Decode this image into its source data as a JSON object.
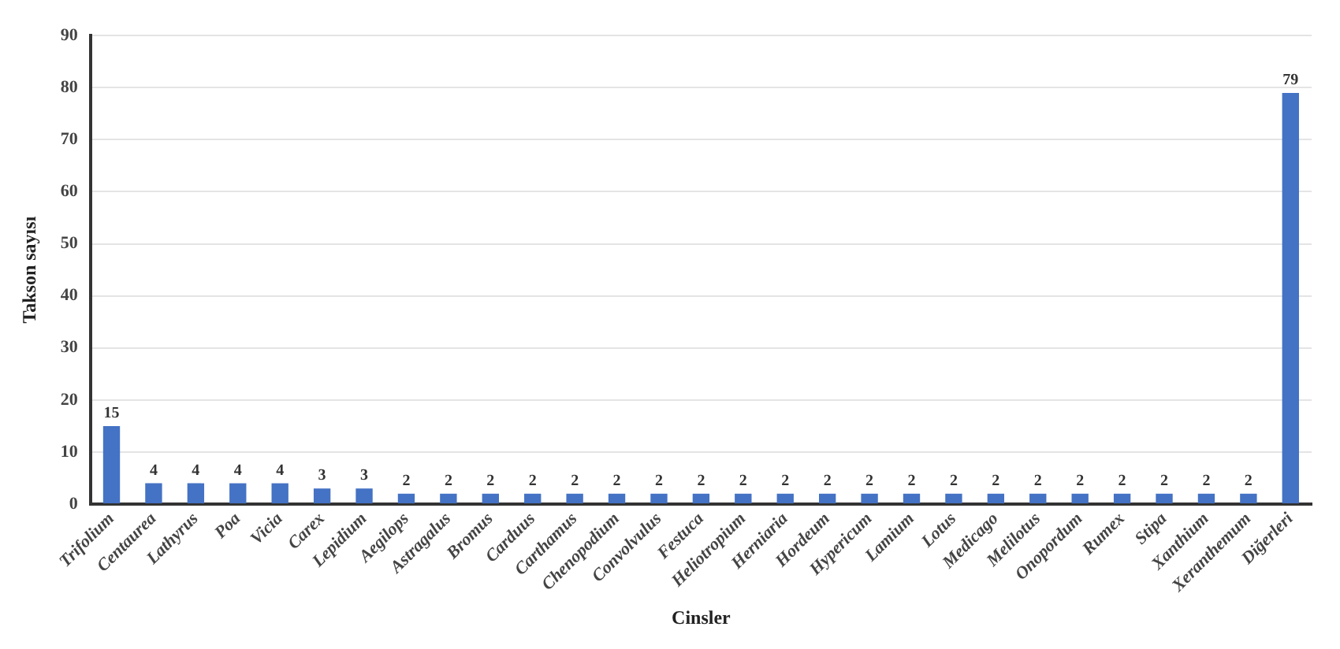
{
  "chart_data": {
    "type": "bar",
    "xlabel": "Cinsler",
    "ylabel": "Takson sayısı",
    "categories": [
      "Trifolium",
      "Centaurea",
      "Lathyrus",
      "Poa",
      "Vicia",
      "Carex",
      "Lepidium",
      "Aegilops",
      "Astragalus",
      "Bromus",
      "Carduus",
      "Carthamus",
      "Chenopodium",
      "Convolvulus",
      "Festuca",
      "Heliotropium",
      "Herniaria",
      "Hordeum",
      "Hypericum",
      "Lamium",
      "Lotus",
      "Medicago",
      "Melilotus",
      "Onopordum",
      "Rumex",
      "Stipa",
      "Xanthium",
      "Xeranthemum",
      "Diğerleri"
    ],
    "values": [
      15,
      4,
      4,
      4,
      4,
      3,
      3,
      2,
      2,
      2,
      2,
      2,
      2,
      2,
      2,
      2,
      2,
      2,
      2,
      2,
      2,
      2,
      2,
      2,
      2,
      2,
      2,
      2,
      79
    ],
    "color": "#4472c4",
    "ylim": [
      0,
      90
    ],
    "yticks": [
      0,
      10,
      20,
      30,
      40,
      50,
      60,
      70,
      80,
      90
    ],
    "grid": "y",
    "data_labels": true,
    "legend": false
  }
}
